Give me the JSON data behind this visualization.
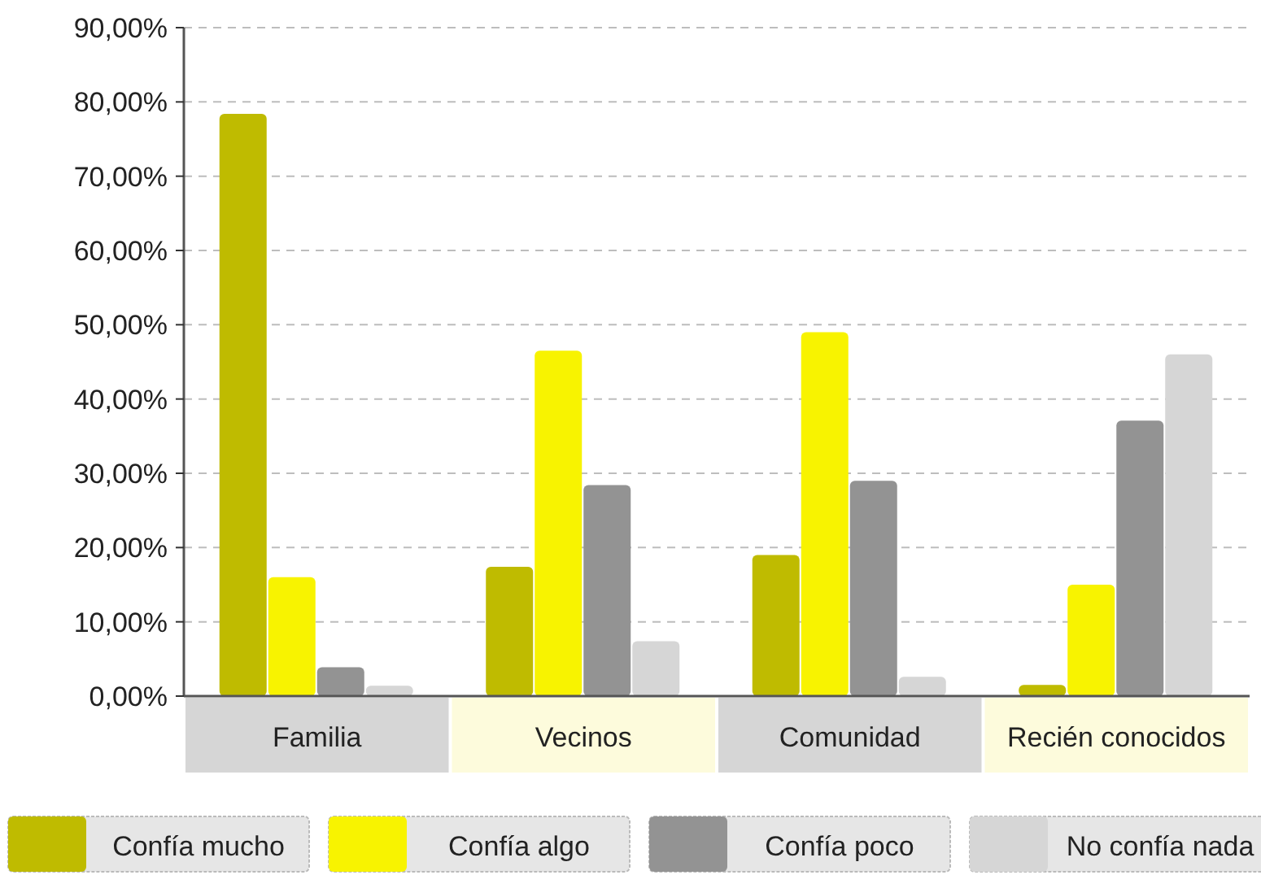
{
  "chart_data": {
    "type": "bar",
    "categories": [
      "Familia",
      "Vecinos",
      "Comunidad",
      "Recién conocidos"
    ],
    "series": [
      {
        "name": "Confía mucho",
        "color": "#bfbb00",
        "values": [
          78.4,
          17.4,
          19.0,
          1.5
        ]
      },
      {
        "name": "Confía algo",
        "color": "#f8f300",
        "values": [
          16.0,
          46.5,
          49.0,
          15.0
        ]
      },
      {
        "name": "Confía poco",
        "color": "#939393",
        "values": [
          3.9,
          28.4,
          29.0,
          37.1
        ]
      },
      {
        "name": "No confía nada",
        "color": "#d6d6d6",
        "values": [
          1.4,
          7.4,
          2.6,
          46.0
        ]
      }
    ],
    "ylim": [
      0,
      90
    ],
    "yticks": [
      {
        "value": 0,
        "label": "0,00%"
      },
      {
        "value": 10,
        "label": "10,00%"
      },
      {
        "value": 20,
        "label": "20,00%"
      },
      {
        "value": 30,
        "label": "30,00%"
      },
      {
        "value": 40,
        "label": "40,00%"
      },
      {
        "value": 50,
        "label": "50,00%"
      },
      {
        "value": 60,
        "label": "60,00%"
      },
      {
        "value": 70,
        "label": "70,00%"
      },
      {
        "value": 80,
        "label": "80,00%"
      },
      {
        "value": 90,
        "label": "90,00%"
      }
    ],
    "grid": "y",
    "legend": "bottom"
  }
}
